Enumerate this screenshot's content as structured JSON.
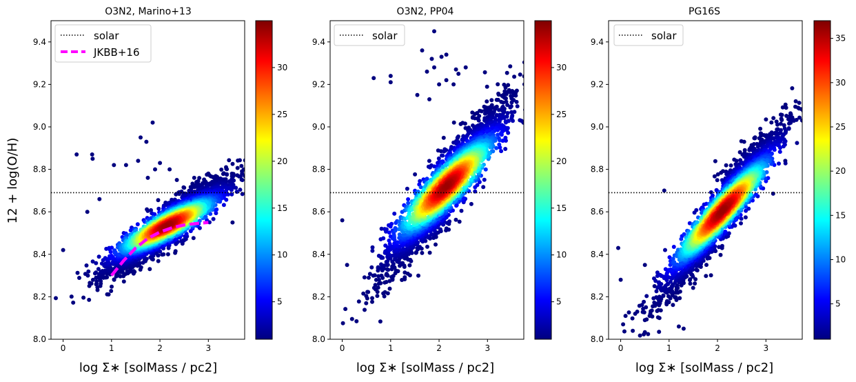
{
  "figure": {
    "ylabel": "12 + log(O/H)",
    "xlabel": "log Σ∗ [solMass / pc2]"
  },
  "colormap": [
    "#00007f",
    "#0000ff",
    "#007fff",
    "#00ffff",
    "#7fff7f",
    "#ffff00",
    "#ff7f00",
    "#ff0000",
    "#7f0000"
  ],
  "chart_data": [
    {
      "type": "scatter",
      "title": "O3N2, Marino+13",
      "xlabel": "log Σ∗ [solMass / pc2]",
      "ylabel": "12 + log(O/H)",
      "xlim": [
        -0.25,
        3.75
      ],
      "ylim": [
        8.0,
        9.5
      ],
      "xticks": [
        0,
        1,
        2,
        3
      ],
      "yticks": [
        8.0,
        8.2,
        8.4,
        8.6,
        8.8,
        9.0,
        9.2,
        9.4
      ],
      "solar": 8.69,
      "legend": {
        "placement": "upper-left",
        "entries": [
          "solar",
          "JKBB+16"
        ]
      },
      "colorbar": {
        "min": 1,
        "max": 35,
        "ticks": [
          5,
          10,
          15,
          20,
          25,
          30
        ]
      },
      "density": {
        "center": [
          2.15,
          8.535
        ],
        "slope": 0.11,
        "sx": 0.62,
        "sy": 0.055,
        "corr": 0.55,
        "peak": 34
      },
      "fit_line": {
        "name": "JKBB+16",
        "color": "#ff00ff",
        "x": [
          1.0,
          1.25,
          1.5,
          1.75,
          2.0,
          2.25,
          2.5,
          2.75,
          3.0
        ],
        "y": [
          8.3,
          8.37,
          8.43,
          8.475,
          8.505,
          8.525,
          8.538,
          8.545,
          8.55
        ]
      },
      "outliers": [
        [
          0.0,
          8.42
        ],
        [
          0.28,
          8.87
        ],
        [
          0.6,
          8.87
        ],
        [
          0.61,
          8.85
        ],
        [
          1.05,
          8.82
        ],
        [
          1.3,
          8.82
        ],
        [
          1.6,
          8.95
        ],
        [
          1.72,
          8.93
        ],
        [
          1.85,
          9.02
        ],
        [
          1.9,
          8.8
        ],
        [
          2.0,
          8.83
        ],
        [
          2.2,
          8.8
        ],
        [
          1.55,
          8.84
        ],
        [
          2.35,
          8.75
        ],
        [
          1.75,
          8.76
        ],
        [
          0.5,
          8.6
        ],
        [
          0.75,
          8.66
        ],
        [
          3.5,
          8.55
        ]
      ]
    },
    {
      "type": "scatter",
      "title": "O3N2, PP04",
      "xlabel": "log Σ∗ [solMass / pc2]",
      "ylabel": "",
      "xlim": [
        -0.25,
        3.75
      ],
      "ylim": [
        8.0,
        9.5
      ],
      "xticks": [
        0,
        1,
        2,
        3
      ],
      "yticks": [
        8.0,
        8.2,
        8.4,
        8.6,
        8.8,
        9.0,
        9.2,
        9.4
      ],
      "solar": 8.69,
      "legend": {
        "placement": "upper-left",
        "entries": [
          "solar"
        ]
      },
      "colorbar": {
        "min": 1,
        "max": 35,
        "ticks": [
          5,
          10,
          15,
          20,
          25,
          30
        ]
      },
      "density": {
        "center": [
          2.15,
          8.72
        ],
        "slope": 0.2,
        "sx": 0.62,
        "sy": 0.09,
        "corr": 0.55,
        "peak": 34
      },
      "outliers": [
        [
          0.0,
          8.56
        ],
        [
          0.65,
          9.23
        ],
        [
          1.0,
          9.24
        ],
        [
          1.0,
          9.21
        ],
        [
          1.9,
          9.45
        ],
        [
          1.65,
          9.36
        ],
        [
          2.05,
          9.33
        ],
        [
          1.85,
          9.32
        ],
        [
          2.15,
          9.34
        ],
        [
          2.3,
          9.2
        ],
        [
          2.35,
          9.27
        ],
        [
          2.4,
          9.25
        ],
        [
          2.0,
          9.2
        ],
        [
          1.55,
          9.15
        ],
        [
          1.8,
          9.13
        ],
        [
          1.9,
          9.28
        ],
        [
          2.15,
          9.22
        ],
        [
          2.55,
          9.28
        ],
        [
          1.75,
          9.26
        ],
        [
          0.1,
          8.35
        ]
      ]
    },
    {
      "type": "scatter",
      "title": "PG16S",
      "xlabel": "log Σ∗ [solMass / pc2]",
      "ylabel": "",
      "xlim": [
        -0.25,
        3.75
      ],
      "ylim": [
        8.0,
        9.5
      ],
      "xticks": [
        0,
        1,
        2,
        3
      ],
      "yticks": [
        8.0,
        8.2,
        8.4,
        8.6,
        8.8,
        9.0,
        9.2,
        9.4
      ],
      "solar": 8.69,
      "legend": {
        "placement": "upper-left",
        "entries": [
          "solar"
        ]
      },
      "colorbar": {
        "min": 1,
        "max": 37,
        "ticks": [
          5,
          10,
          15,
          20,
          25,
          30,
          35
        ]
      },
      "density": {
        "center": [
          2.1,
          8.605
        ],
        "slope": 0.23,
        "sx": 0.6,
        "sy": 0.075,
        "corr": 0.55,
        "peak": 36
      },
      "outliers": [
        [
          -0.05,
          8.43
        ],
        [
          0.0,
          8.28
        ],
        [
          0.05,
          8.07
        ],
        [
          0.1,
          8.11
        ],
        [
          0.25,
          8.04
        ],
        [
          0.3,
          8.12
        ],
        [
          0.5,
          8.09
        ],
        [
          0.8,
          8.1
        ],
        [
          1.2,
          8.06
        ],
        [
          1.3,
          8.05
        ],
        [
          0.5,
          8.35
        ],
        [
          0.7,
          8.25
        ],
        [
          0.9,
          8.7
        ],
        [
          3.4,
          8.84
        ],
        [
          3.2,
          8.92
        ],
        [
          2.55,
          8.93
        ]
      ]
    }
  ]
}
